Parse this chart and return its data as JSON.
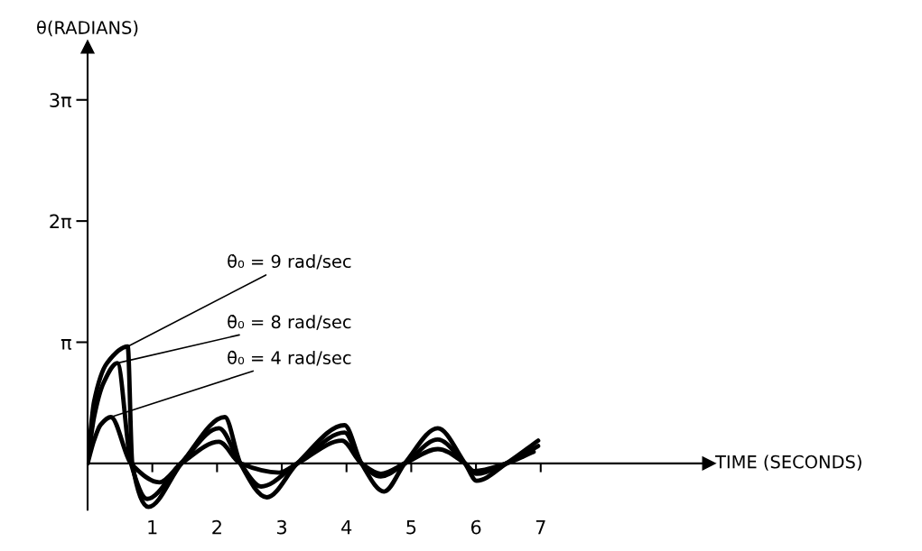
{
  "chart_data": {
    "type": "line",
    "xlabel": "TIME (SECONDS)",
    "ylabel": "θ(RADIANS)",
    "xlim": [
      0,
      9.6
    ],
    "ylim": [
      -1.2,
      10.8
    ],
    "xticks": [
      1,
      2,
      3,
      4,
      5,
      6,
      7
    ],
    "yticks": [
      {
        "value": 3.14159,
        "label": "π"
      },
      {
        "value": 6.28319,
        "label": "2π"
      },
      {
        "value": 9.42478,
        "label": "3π"
      }
    ],
    "grid": false,
    "legend": false,
    "marker": "none",
    "line_style": "solid",
    "series": [
      {
        "name": "θ̇₀ = 9 rad/sec",
        "color": "#000000",
        "x": [
          0,
          0.1,
          0.3,
          0.62,
          0.69,
          0.94,
          1.45,
          2.12,
          2.36,
          2.77,
          3.24,
          3.97,
          4.23,
          4.58,
          4.9,
          5.41,
          5.83,
          6.01,
          6.47,
          6.96
        ],
        "values": [
          0,
          1.6,
          2.6,
          3.03,
          0,
          -1.13,
          0,
          1.2,
          0,
          -0.88,
          0,
          0.99,
          0,
          -0.73,
          0,
          0.91,
          0,
          -0.45,
          0,
          0.59
        ]
      },
      {
        "name": "θ̇₀ = 8 rad/sec",
        "color": "#000000",
        "x": [
          0,
          0.1,
          0.25,
          0.46,
          0.67,
          0.92,
          1.44,
          2.03,
          2.36,
          2.68,
          3.24,
          3.97,
          4.23,
          4.53,
          4.9,
          5.41,
          5.83,
          6.01,
          6.47,
          6.96
        ],
        "values": [
          0,
          1.2,
          2.1,
          2.6,
          0,
          -0.92,
          0,
          0.91,
          0,
          -0.6,
          0,
          0.8,
          0,
          -0.34,
          0,
          0.62,
          0,
          -0.27,
          0,
          0.45
        ]
      },
      {
        "name": "θ̇₀ = 4 rad/sec",
        "color": "#000000",
        "x": [
          0,
          0.1,
          0.2,
          0.36,
          0.67,
          1.11,
          1.45,
          2.03,
          2.36,
          2.96,
          3.24,
          3.93,
          4.23,
          4.53,
          4.9,
          5.41,
          5.83,
          5.97,
          6.47,
          6.89
        ],
        "values": [
          0,
          0.6,
          1.0,
          1.2,
          0,
          -0.49,
          0,
          0.56,
          0,
          -0.24,
          0,
          0.59,
          0,
          -0.27,
          0,
          0.37,
          0,
          -0.2,
          0,
          0.3
        ]
      }
    ]
  }
}
